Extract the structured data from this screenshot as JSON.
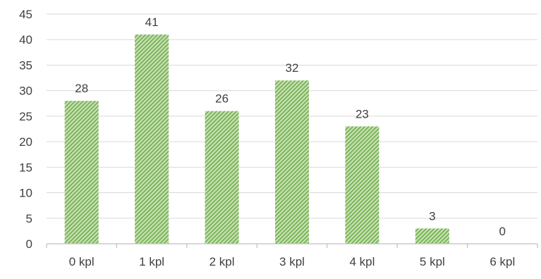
{
  "chart_data": {
    "type": "bar",
    "title": "",
    "xlabel": "",
    "ylabel": "",
    "categories": [
      "0 kpl",
      "1 kpl",
      "2 kpl",
      "3 kpl",
      "4 kpl",
      "5 kpl",
      "6 kpl"
    ],
    "values": [
      28,
      41,
      26,
      32,
      23,
      3,
      0
    ],
    "ylim": [
      0,
      45
    ],
    "yticks": [
      0,
      5,
      10,
      15,
      20,
      25,
      30,
      35,
      40,
      45
    ],
    "grid": true,
    "legend": "none",
    "colors": {
      "bar_fill": "#c5e0b4",
      "bar_hatch": "#70ad47",
      "gridline": "#d9d9d9",
      "axis_line": "#bfbfbf",
      "text": "#404040"
    }
  }
}
